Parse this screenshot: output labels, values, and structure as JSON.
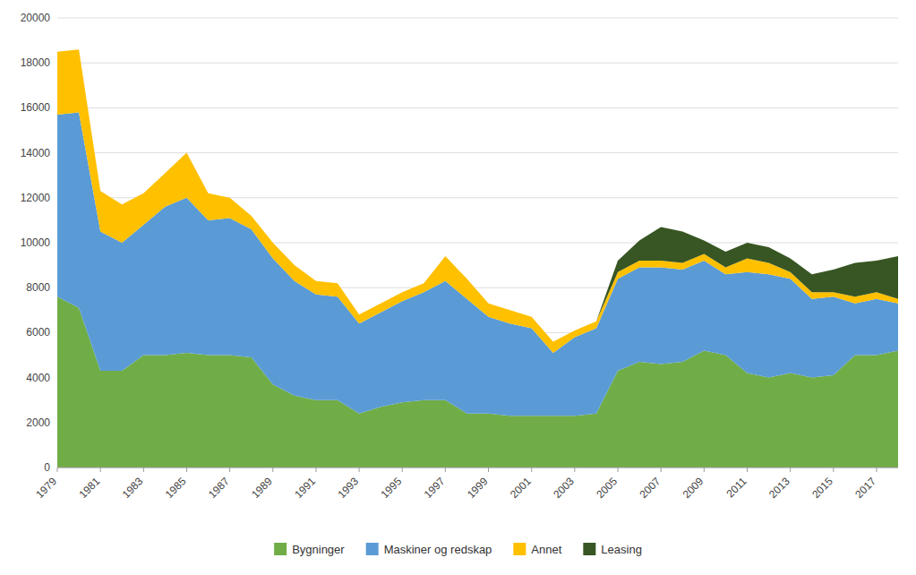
{
  "chart_data": {
    "type": "area",
    "stacked": true,
    "x": [
      1979,
      1980,
      1981,
      1982,
      1983,
      1984,
      1985,
      1986,
      1987,
      1988,
      1989,
      1990,
      1991,
      1992,
      1993,
      1994,
      1995,
      1996,
      1997,
      1998,
      1999,
      2000,
      2001,
      2002,
      2003,
      2004,
      2005,
      2006,
      2007,
      2008,
      2009,
      2010,
      2011,
      2012,
      2013,
      2014,
      2015,
      2016,
      2017,
      2018
    ],
    "series": [
      {
        "name": "Bygninger",
        "color": "#70AD47",
        "values": [
          7600,
          7100,
          4300,
          4300,
          5000,
          5000,
          5100,
          5000,
          5000,
          4900,
          3700,
          3200,
          3000,
          3000,
          2400,
          2700,
          2900,
          3000,
          3000,
          2400,
          2400,
          2300,
          2300,
          2300,
          2300,
          2400,
          4300,
          4700,
          4600,
          4700,
          5200,
          5000,
          4200,
          4000,
          4200,
          4000,
          4100,
          5000,
          5000,
          5200
        ]
      },
      {
        "name": "Maskiner og redskap",
        "color": "#5B9BD5",
        "values": [
          8100,
          8700,
          6200,
          5700,
          5800,
          6600,
          6900,
          6000,
          6100,
          5700,
          5600,
          5100,
          4700,
          4600,
          4000,
          4200,
          4500,
          4800,
          5300,
          5100,
          4300,
          4100,
          3900,
          2800,
          3500,
          3800,
          4100,
          4200,
          4300,
          4100,
          4000,
          3600,
          4500,
          4600,
          4200,
          3500,
          3500,
          2300,
          2500,
          2100
        ]
      },
      {
        "name": "Annet",
        "color": "#FFC000",
        "values": [
          2800,
          2800,
          1800,
          1700,
          1400,
          1500,
          2000,
          1200,
          900,
          600,
          700,
          700,
          600,
          600,
          400,
          400,
          400,
          400,
          1100,
          900,
          600,
          600,
          500,
          500,
          300,
          300,
          300,
          300,
          300,
          300,
          300,
          300,
          600,
          500,
          300,
          300,
          200,
          300,
          300,
          200
        ]
      },
      {
        "name": "Leasing",
        "color": "#375623",
        "values": [
          0,
          0,
          0,
          0,
          0,
          0,
          0,
          0,
          0,
          0,
          0,
          0,
          0,
          0,
          0,
          0,
          0,
          0,
          0,
          0,
          0,
          0,
          0,
          0,
          0,
          0,
          500,
          900,
          1500,
          1400,
          600,
          700,
          700,
          700,
          600,
          800,
          1000,
          1500,
          1400,
          1900
        ]
      }
    ],
    "xlim": [
      1979,
      2018
    ],
    "xticks": [
      1979,
      1981,
      1983,
      1985,
      1987,
      1989,
      1991,
      1993,
      1995,
      1997,
      1999,
      2001,
      2003,
      2005,
      2007,
      2009,
      2011,
      2013,
      2015,
      2017
    ],
    "ylim": [
      0,
      20000
    ],
    "yticks": [
      0,
      2000,
      4000,
      6000,
      8000,
      10000,
      12000,
      14000,
      16000,
      18000,
      20000
    ],
    "grid": true,
    "legend": "bottom"
  }
}
